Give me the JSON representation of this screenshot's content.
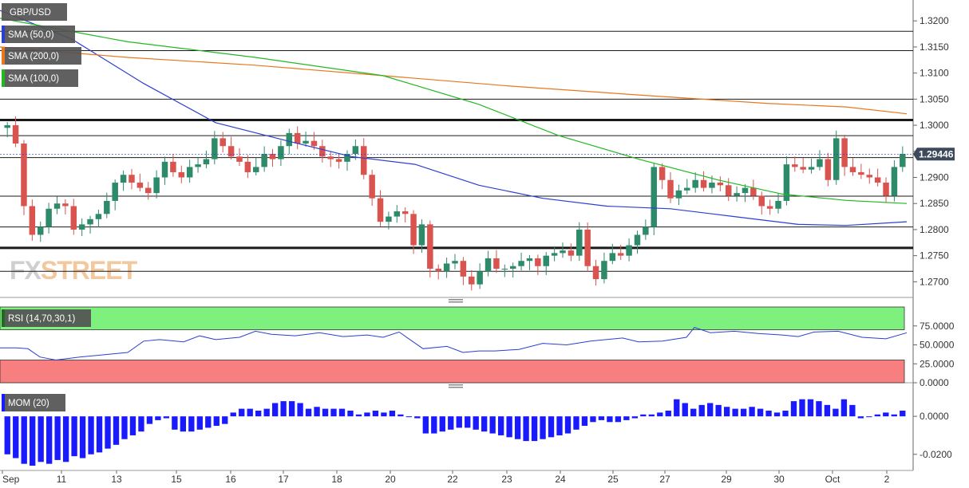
{
  "chart_data": [
    {
      "type": "candlestick",
      "symbol": "GBP/USD",
      "indicators": [
        {
          "label": "SMA (50,0)",
          "color": "#2b3fd1"
        },
        {
          "label": "SMA (200,0)",
          "color": "#e8771e"
        },
        {
          "label": "SMA (100,0)",
          "color": "#22b822"
        }
      ],
      "y_ticks": [
        "1.3200",
        "1.3150",
        "1.3100",
        "1.3050",
        "1.3000",
        "1.2950",
        "1.2900",
        "1.2850",
        "1.2800",
        "1.2750",
        "1.2700"
      ],
      "ylim": [
        1.267,
        1.324
      ],
      "last_price": "1.29446",
      "x_ticks": [
        "Sep",
        "11",
        "13",
        "15",
        "16",
        "17",
        "18",
        "20",
        "22",
        "23",
        "24",
        "25",
        "27",
        "29",
        "30",
        "Oct",
        "2"
      ],
      "horizontal_levels": [
        1.318,
        1.3143,
        1.305,
        1.301,
        1.298,
        1.2938,
        1.2864,
        1.2805,
        1.2765,
        1.272
      ],
      "watermark": "FXSTREET",
      "colors": {
        "up": "#2e8b6a",
        "down": "#d9534f",
        "grid": "#333333",
        "tag": "#3d4a5c"
      }
    },
    {
      "type": "line",
      "label": "RSI (14,70,30,1)",
      "y_ticks": [
        "75.0000",
        "50.0000",
        "25.0000",
        "0.0000"
      ],
      "ylim": [
        0,
        100
      ],
      "overbought": 70,
      "oversold": 30,
      "colors": {
        "line": "#2b3fd1",
        "overbought": "#7ef07e",
        "oversold": "#f77f7f"
      }
    },
    {
      "type": "bar",
      "label": "MOM (20)",
      "y_ticks": [
        "0.0000",
        "-0.0200"
      ],
      "ylim": [
        -0.0285,
        0.0135
      ],
      "colors": {
        "bar": "#1a1aff"
      }
    }
  ]
}
